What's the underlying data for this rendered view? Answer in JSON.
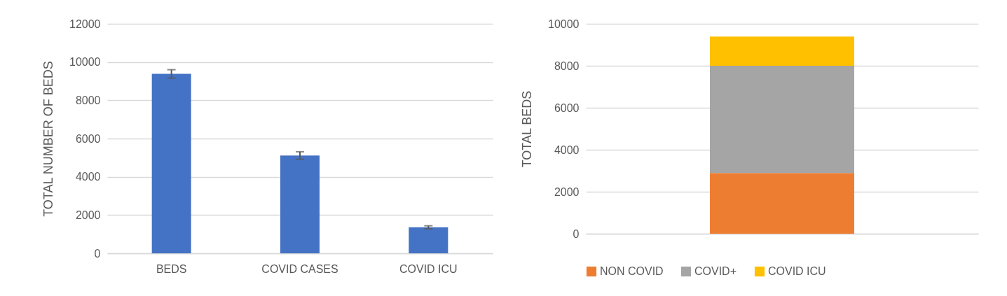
{
  "chart_data": [
    {
      "type": "bar",
      "ylabel": "TOTAL NUMBER OF BEDS",
      "categories": [
        "BEDS",
        "COVID CASES",
        "COVID ICU"
      ],
      "values": [
        9380,
        5110,
        1360
      ],
      "errors": [
        220,
        200,
        80
      ],
      "color": "#4472c4",
      "ylim": [
        0,
        12000
      ],
      "yticks": [
        0,
        2000,
        4000,
        6000,
        8000,
        10000,
        12000
      ],
      "grid": "y"
    },
    {
      "type": "bar",
      "stacked": true,
      "ylabel": "TOTAL BEDS",
      "categories": [
        null
      ],
      "series": [
        {
          "name": "NON COVID",
          "color": "#ed7d31",
          "values": [
            2890
          ]
        },
        {
          "name": "COVID+",
          "color": "#a5a5a5",
          "values": [
            5110
          ]
        },
        {
          "name": "COVID ICU",
          "color": "#ffc000",
          "values": [
            1390
          ]
        }
      ],
      "ylim": [
        0,
        10000
      ],
      "yticks": [
        0,
        2000,
        4000,
        6000,
        8000,
        10000
      ],
      "grid": "y",
      "legend": "bottom"
    }
  ]
}
